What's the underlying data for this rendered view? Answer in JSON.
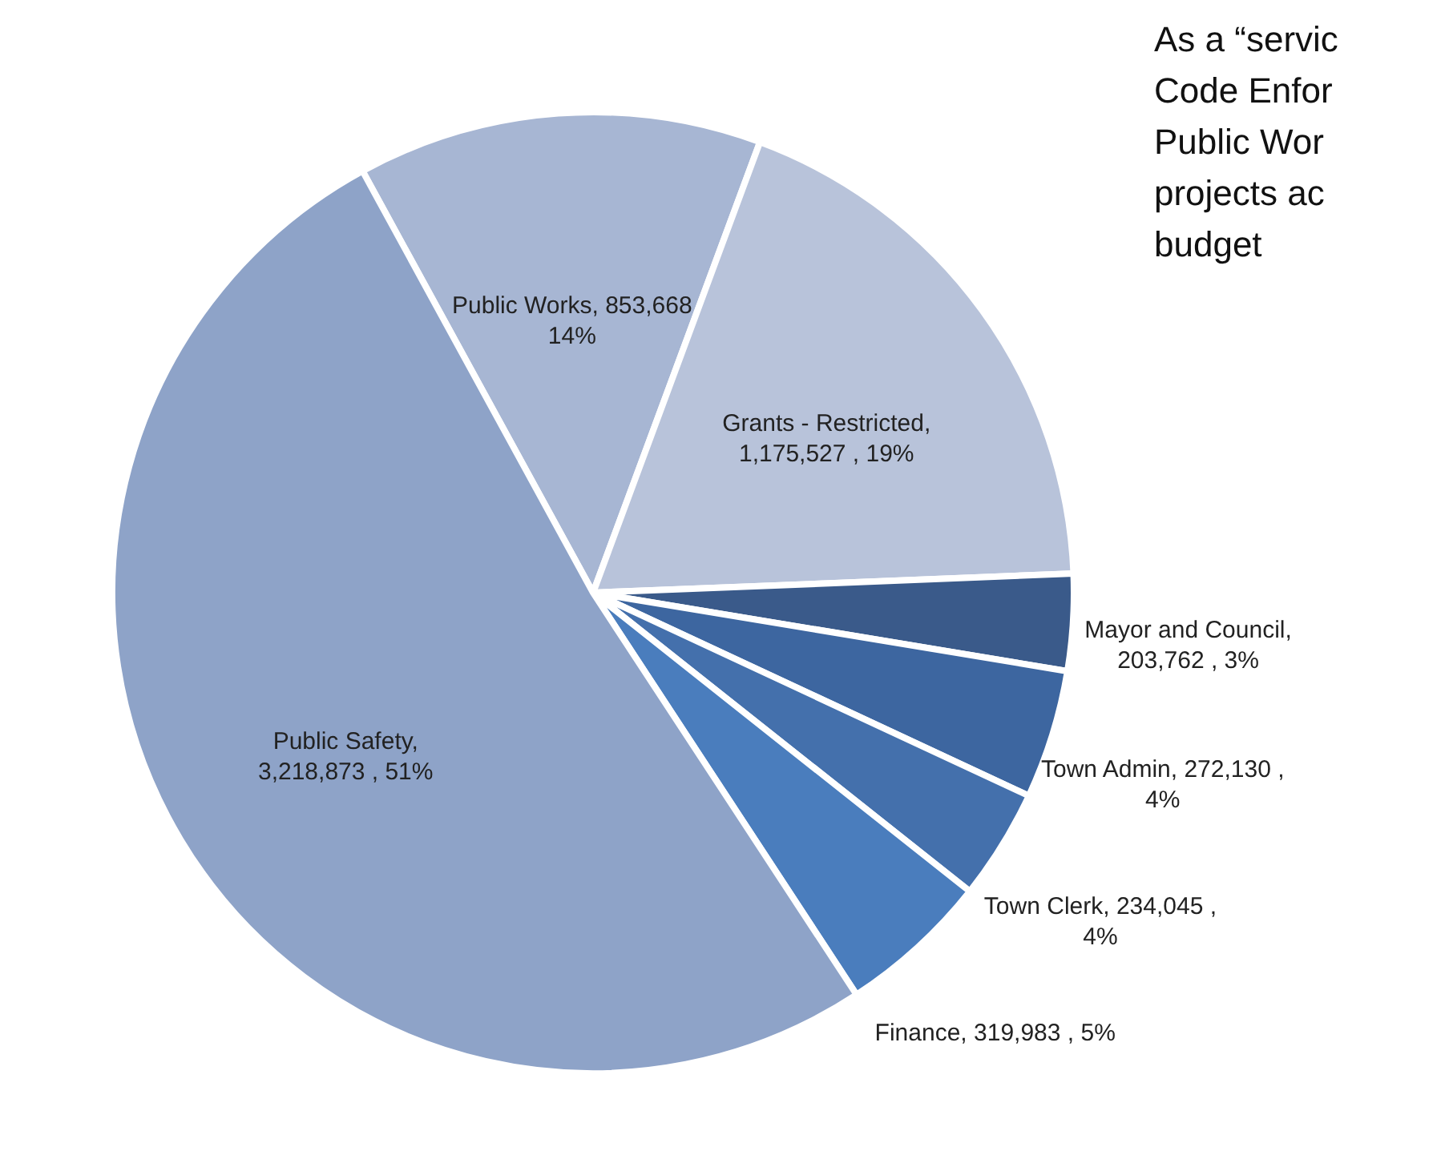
{
  "chart_data": {
    "type": "pie",
    "categories": [
      "Public Works",
      "Grants - Restricted",
      "Mayor and Council",
      "Town Admin",
      "Town Clerk",
      "Finance",
      "Public Safety"
    ],
    "values": [
      853668,
      1175527,
      203762,
      272130,
      234045,
      319983,
      3218873
    ],
    "colors": [
      "#a7b6d3",
      "#b8c3da",
      "#3a5a8a",
      "#3d66a0",
      "#4470ac",
      "#4a7dbd",
      "#8ea3c8"
    ],
    "value_labels": [
      ",  853,668\n14%",
      ",\n1,175,527 , 19%",
      ",\n203,762 , 3%",
      ",  272,130 ,\n4%",
      ",  234,045 ,\n4%",
      ",  319,983 , 5%",
      ",\n3,218,873 , 51%"
    ],
    "annotations": [
      "As a “servic\nCode Enfor\nPublic Wor\nprojects ac\nbudget"
    ]
  }
}
